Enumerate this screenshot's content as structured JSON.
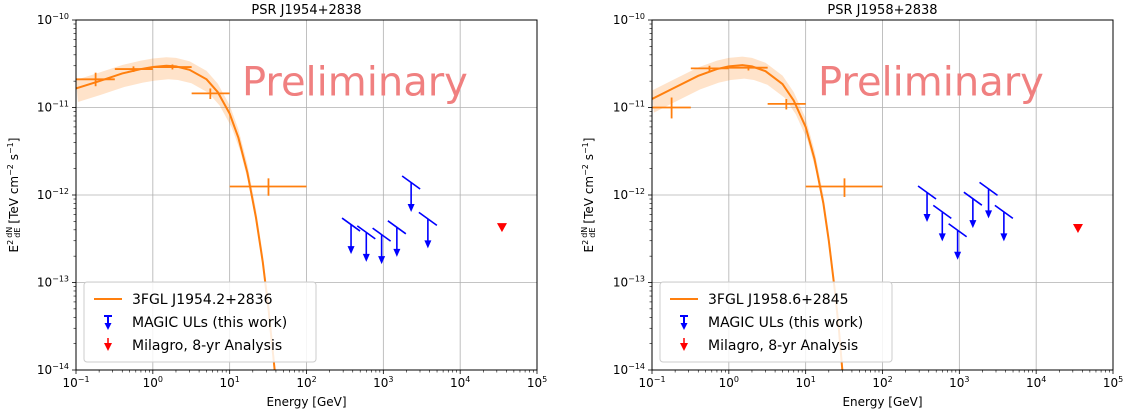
{
  "chart_data": [
    {
      "type": "scatter",
      "title": "PSR J1954+2838",
      "xlabel": "Energy [GeV]",
      "ylabel_parts": [
        "E",
        "2",
        "dN",
        "dE",
        "[TeV cm",
        "−2",
        " s",
        "−1",
        "]"
      ],
      "xscale": "log",
      "yscale": "log",
      "xlim": [
        0.1,
        100000
      ],
      "ylim": [
        1e-14,
        1e-10
      ],
      "grid": true,
      "watermark": "Preliminary",
      "x_ticks": [
        {
          "v": 0.1,
          "b": "10",
          "e": "−1"
        },
        {
          "v": 1,
          "b": "10",
          "e": "0"
        },
        {
          "v": 10,
          "b": "10",
          "e": "1"
        },
        {
          "v": 100,
          "b": "10",
          "e": "2"
        },
        {
          "v": 1000,
          "b": "10",
          "e": "3"
        },
        {
          "v": 10000,
          "b": "10",
          "e": "4"
        },
        {
          "v": 100000,
          "b": "10",
          "e": "5"
        }
      ],
      "y_ticks": [
        {
          "v": 1e-14,
          "b": "10",
          "e": "−14"
        },
        {
          "v": 1e-13,
          "b": "10",
          "e": "−13"
        },
        {
          "v": 1e-12,
          "b": "10",
          "e": "−12"
        },
        {
          "v": 1e-11,
          "b": "10",
          "e": "−11"
        },
        {
          "v": 1e-10,
          "b": "10",
          "e": "−10"
        }
      ],
      "fermi_model": {
        "name": "3FGL J1954.2+2836",
        "color": "#ff7f0e",
        "curve": [
          [
            0.1,
            1.65e-11
          ],
          [
            0.2,
            2e-11
          ],
          [
            0.4,
            2.45e-11
          ],
          [
            0.7,
            2.75e-11
          ],
          [
            1.0,
            2.9e-11
          ],
          [
            1.5,
            3e-11
          ],
          [
            2.0,
            2.95e-11
          ],
          [
            3.0,
            2.7e-11
          ],
          [
            5.0,
            2.1e-11
          ],
          [
            7.0,
            1.5e-11
          ],
          [
            10.0,
            8.5e-12
          ],
          [
            13.0,
            4.5e-12
          ],
          [
            17.0,
            1.8e-12
          ],
          [
            22.0,
            5.5e-13
          ],
          [
            27.0,
            1.7e-13
          ],
          [
            32.0,
            5e-14
          ],
          [
            36.0,
            1.8e-14
          ],
          [
            38.5,
            1e-14
          ]
        ]
      },
      "fermi_points": [
        {
          "x": 0.18,
          "y": 2.1e-11,
          "xlo": 0.1,
          "xhi": 0.32,
          "ylo": 1.75e-11,
          "yhi": 2.5e-11
        },
        {
          "x": 0.56,
          "y": 2.75e-11,
          "xlo": 0.32,
          "xhi": 1.0,
          "ylo": 2.55e-11,
          "yhi": 2.95e-11
        },
        {
          "x": 1.8,
          "y": 2.9e-11,
          "xlo": 1.0,
          "xhi": 3.2,
          "ylo": 2.72e-11,
          "yhi": 3.1e-11
        },
        {
          "x": 5.6,
          "y": 1.45e-11,
          "xlo": 3.2,
          "xhi": 10.0,
          "ylo": 1.25e-11,
          "yhi": 1.65e-11
        },
        {
          "x": 32.0,
          "y": 1.25e-12,
          "xlo": 10.0,
          "xhi": 100.0,
          "ylo": 9.8e-13,
          "yhi": 1.55e-12
        }
      ],
      "magic_uls": {
        "name": "MAGIC ULs (this work)",
        "color": "#0000ff",
        "points": [
          {
            "x": 380,
            "y": 4.3e-13
          },
          {
            "x": 600,
            "y": 3.5e-13
          },
          {
            "x": 950,
            "y": 3.3e-13
          },
          {
            "x": 1500,
            "y": 4e-13
          },
          {
            "x": 2300,
            "y": 1.3e-12
          },
          {
            "x": 3800,
            "y": 5e-13
          }
        ]
      },
      "milagro": {
        "name": "Milagro, 8-yr Analysis",
        "color": "#ff0000",
        "points": [
          {
            "x": 35000,
            "y": 4.3e-13
          }
        ]
      },
      "legend": {
        "placement": "lower-left",
        "entries": [
          "3FGL J1954.2+2836",
          "MAGIC ULs (this work)",
          "Milagro, 8-yr Analysis"
        ]
      }
    },
    {
      "type": "scatter",
      "title": "PSR J1958+2838",
      "xlabel": "Energy [GeV]",
      "ylabel_parts": [
        "E",
        "2",
        "dN",
        "dE",
        "[TeV cm",
        "−2",
        " s",
        "−1",
        "]"
      ],
      "xscale": "log",
      "yscale": "log",
      "xlim": [
        0.1,
        100000
      ],
      "ylim": [
        1e-14,
        1e-10
      ],
      "grid": true,
      "watermark": "Preliminary",
      "x_ticks": [
        {
          "v": 0.1,
          "b": "10",
          "e": "−1"
        },
        {
          "v": 1,
          "b": "10",
          "e": "0"
        },
        {
          "v": 10,
          "b": "10",
          "e": "1"
        },
        {
          "v": 100,
          "b": "10",
          "e": "2"
        },
        {
          "v": 1000,
          "b": "10",
          "e": "3"
        },
        {
          "v": 10000,
          "b": "10",
          "e": "4"
        },
        {
          "v": 100000,
          "b": "10",
          "e": "5"
        }
      ],
      "y_ticks": [
        {
          "v": 1e-14,
          "b": "10",
          "e": "−14"
        },
        {
          "v": 1e-13,
          "b": "10",
          "e": "−13"
        },
        {
          "v": 1e-12,
          "b": "10",
          "e": "−12"
        },
        {
          "v": 1e-11,
          "b": "10",
          "e": "−11"
        },
        {
          "v": 1e-10,
          "b": "10",
          "e": "−10"
        }
      ],
      "fermi_model": {
        "name": "3FGL J1958.6+2845",
        "color": "#ff7f0e",
        "curve": [
          [
            0.1,
            1.25e-11
          ],
          [
            0.2,
            1.7e-11
          ],
          [
            0.4,
            2.3e-11
          ],
          [
            0.7,
            2.75e-11
          ],
          [
            1.0,
            2.95e-11
          ],
          [
            1.5,
            3.05e-11
          ],
          [
            2.0,
            2.95e-11
          ],
          [
            3.0,
            2.6e-11
          ],
          [
            5.0,
            1.85e-11
          ],
          [
            7.0,
            1.2e-11
          ],
          [
            10.0,
            6e-12
          ],
          [
            13.0,
            2.6e-12
          ],
          [
            17.0,
            8e-13
          ],
          [
            20.0,
            3e-13
          ],
          [
            24.0,
            8e-14
          ],
          [
            27.0,
            3e-14
          ],
          [
            30.0,
            1e-14
          ]
        ]
      },
      "fermi_points": [
        {
          "x": 0.18,
          "y": 1e-11,
          "xlo": 0.1,
          "xhi": 0.32,
          "ylo": 7.5e-12,
          "yhi": 1.3e-11
        },
        {
          "x": 0.56,
          "y": 2.8e-11,
          "xlo": 0.32,
          "xhi": 1.0,
          "ylo": 2.6e-11,
          "yhi": 3e-11
        },
        {
          "x": 1.8,
          "y": 2.85e-11,
          "xlo": 1.0,
          "xhi": 3.2,
          "ylo": 2.65e-11,
          "yhi": 3.05e-11
        },
        {
          "x": 5.6,
          "y": 1.1e-11,
          "xlo": 3.2,
          "xhi": 10.0,
          "ylo": 9.5e-12,
          "yhi": 1.25e-11
        },
        {
          "x": 32.0,
          "y": 1.25e-12,
          "xlo": 10.0,
          "xhi": 100.0,
          "ylo": 9.5e-13,
          "yhi": 1.55e-12
        }
      ],
      "magic_uls": {
        "name": "MAGIC ULs (this work)",
        "color": "#0000ff",
        "points": [
          {
            "x": 380,
            "y": 1e-12
          },
          {
            "x": 600,
            "y": 6e-13
          },
          {
            "x": 950,
            "y": 3.7e-13
          },
          {
            "x": 1500,
            "y": 8.5e-13
          },
          {
            "x": 2400,
            "y": 1.1e-12
          },
          {
            "x": 3800,
            "y": 6e-13
          }
        ]
      },
      "milagro": {
        "name": "Milagro, 8-yr Analysis",
        "color": "#ff0000",
        "points": [
          {
            "x": 35000,
            "y": 4.2e-13
          }
        ]
      },
      "legend": {
        "placement": "lower-left",
        "entries": [
          "3FGL J1958.6+2845",
          "MAGIC ULs (this work)",
          "Milagro, 8-yr Analysis"
        ]
      }
    }
  ]
}
